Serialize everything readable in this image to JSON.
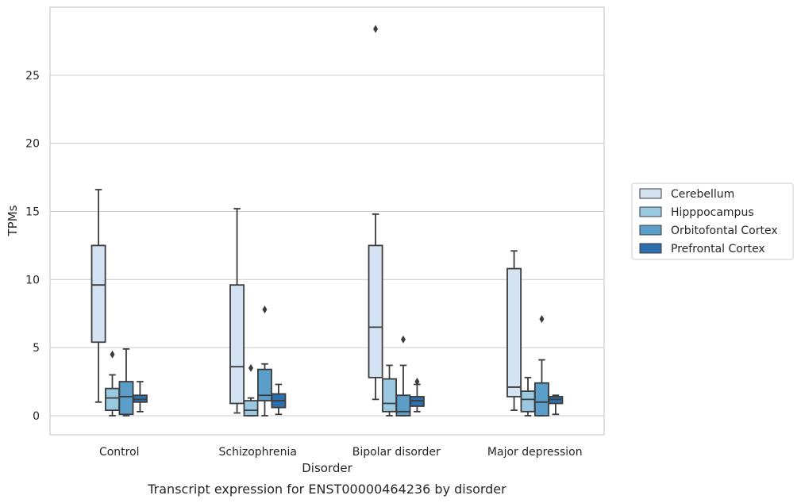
{
  "chart_data": {
    "type": "boxplot",
    "caption": "Transcript expression for ENST00000464236 by disorder",
    "xlabel": "Disorder",
    "ylabel": "TPMs",
    "ylim": [
      -1.4,
      30
    ],
    "yticks": [
      0,
      5,
      10,
      15,
      20,
      25
    ],
    "grid": "horizontal",
    "legend_position": "right",
    "categories": [
      "Control",
      "Schizophrenia",
      "Bipolar disorder",
      "Major depression"
    ],
    "series": [
      {
        "name": "Cerebellum",
        "color": "#d3e3f3",
        "boxes": [
          {
            "whislo": 1.0,
            "q1": 5.4,
            "med": 9.6,
            "q3": 12.5,
            "whishi": 16.6,
            "fliers": []
          },
          {
            "whislo": 0.2,
            "q1": 0.9,
            "med": 3.6,
            "q3": 9.6,
            "whishi": 15.2,
            "fliers": []
          },
          {
            "whislo": 1.2,
            "q1": 2.8,
            "med": 6.5,
            "q3": 12.5,
            "whishi": 14.8,
            "fliers": [
              28.4
            ]
          },
          {
            "whislo": 0.4,
            "q1": 1.4,
            "med": 2.1,
            "q3": 10.8,
            "whishi": 12.1,
            "fliers": []
          }
        ]
      },
      {
        "name": "Hipppocampus",
        "color": "#9ac8e0",
        "boxes": [
          {
            "whislo": 0.0,
            "q1": 0.4,
            "med": 1.3,
            "q3": 2.0,
            "whishi": 3.0,
            "fliers": [
              4.5
            ]
          },
          {
            "whislo": 0.0,
            "q1": 0.0,
            "med": 0.4,
            "q3": 1.1,
            "whishi": 1.3,
            "fliers": [
              3.5
            ]
          },
          {
            "whislo": 0.0,
            "q1": 0.3,
            "med": 0.9,
            "q3": 2.7,
            "whishi": 3.7,
            "fliers": []
          },
          {
            "whislo": 0.0,
            "q1": 0.3,
            "med": 1.2,
            "q3": 1.8,
            "whishi": 2.8,
            "fliers": []
          }
        ]
      },
      {
        "name": "Orbitofontal Cortex",
        "color": "#5a9ec9",
        "boxes": [
          {
            "whislo": 0.0,
            "q1": 0.1,
            "med": 1.4,
            "q3": 2.5,
            "whishi": 4.9,
            "fliers": []
          },
          {
            "whislo": 0.0,
            "q1": 1.1,
            "med": 1.5,
            "q3": 3.4,
            "whishi": 3.8,
            "fliers": [
              7.8
            ]
          },
          {
            "whislo": 0.0,
            "q1": 0.0,
            "med": 0.3,
            "q3": 1.5,
            "whishi": 3.7,
            "fliers": [
              5.6
            ]
          },
          {
            "whislo": 0.0,
            "q1": 0.0,
            "med": 1.0,
            "q3": 2.4,
            "whishi": 4.1,
            "fliers": [
              7.1
            ]
          }
        ]
      },
      {
        "name": "Prefrontal Cortex",
        "color": "#2d6eac",
        "boxes": [
          {
            "whislo": 0.3,
            "q1": 1.0,
            "med": 1.2,
            "q3": 1.5,
            "whishi": 2.5,
            "fliers": []
          },
          {
            "whislo": 0.1,
            "q1": 0.6,
            "med": 1.1,
            "q3": 1.6,
            "whishi": 2.3,
            "fliers": []
          },
          {
            "whislo": 0.3,
            "q1": 0.7,
            "med": 1.1,
            "q3": 1.4,
            "whishi": 2.3,
            "fliers": [
              2.5
            ]
          },
          {
            "whislo": 0.1,
            "q1": 0.9,
            "med": 1.2,
            "q3": 1.4,
            "whishi": 1.5,
            "fliers": []
          }
        ]
      }
    ]
  }
}
